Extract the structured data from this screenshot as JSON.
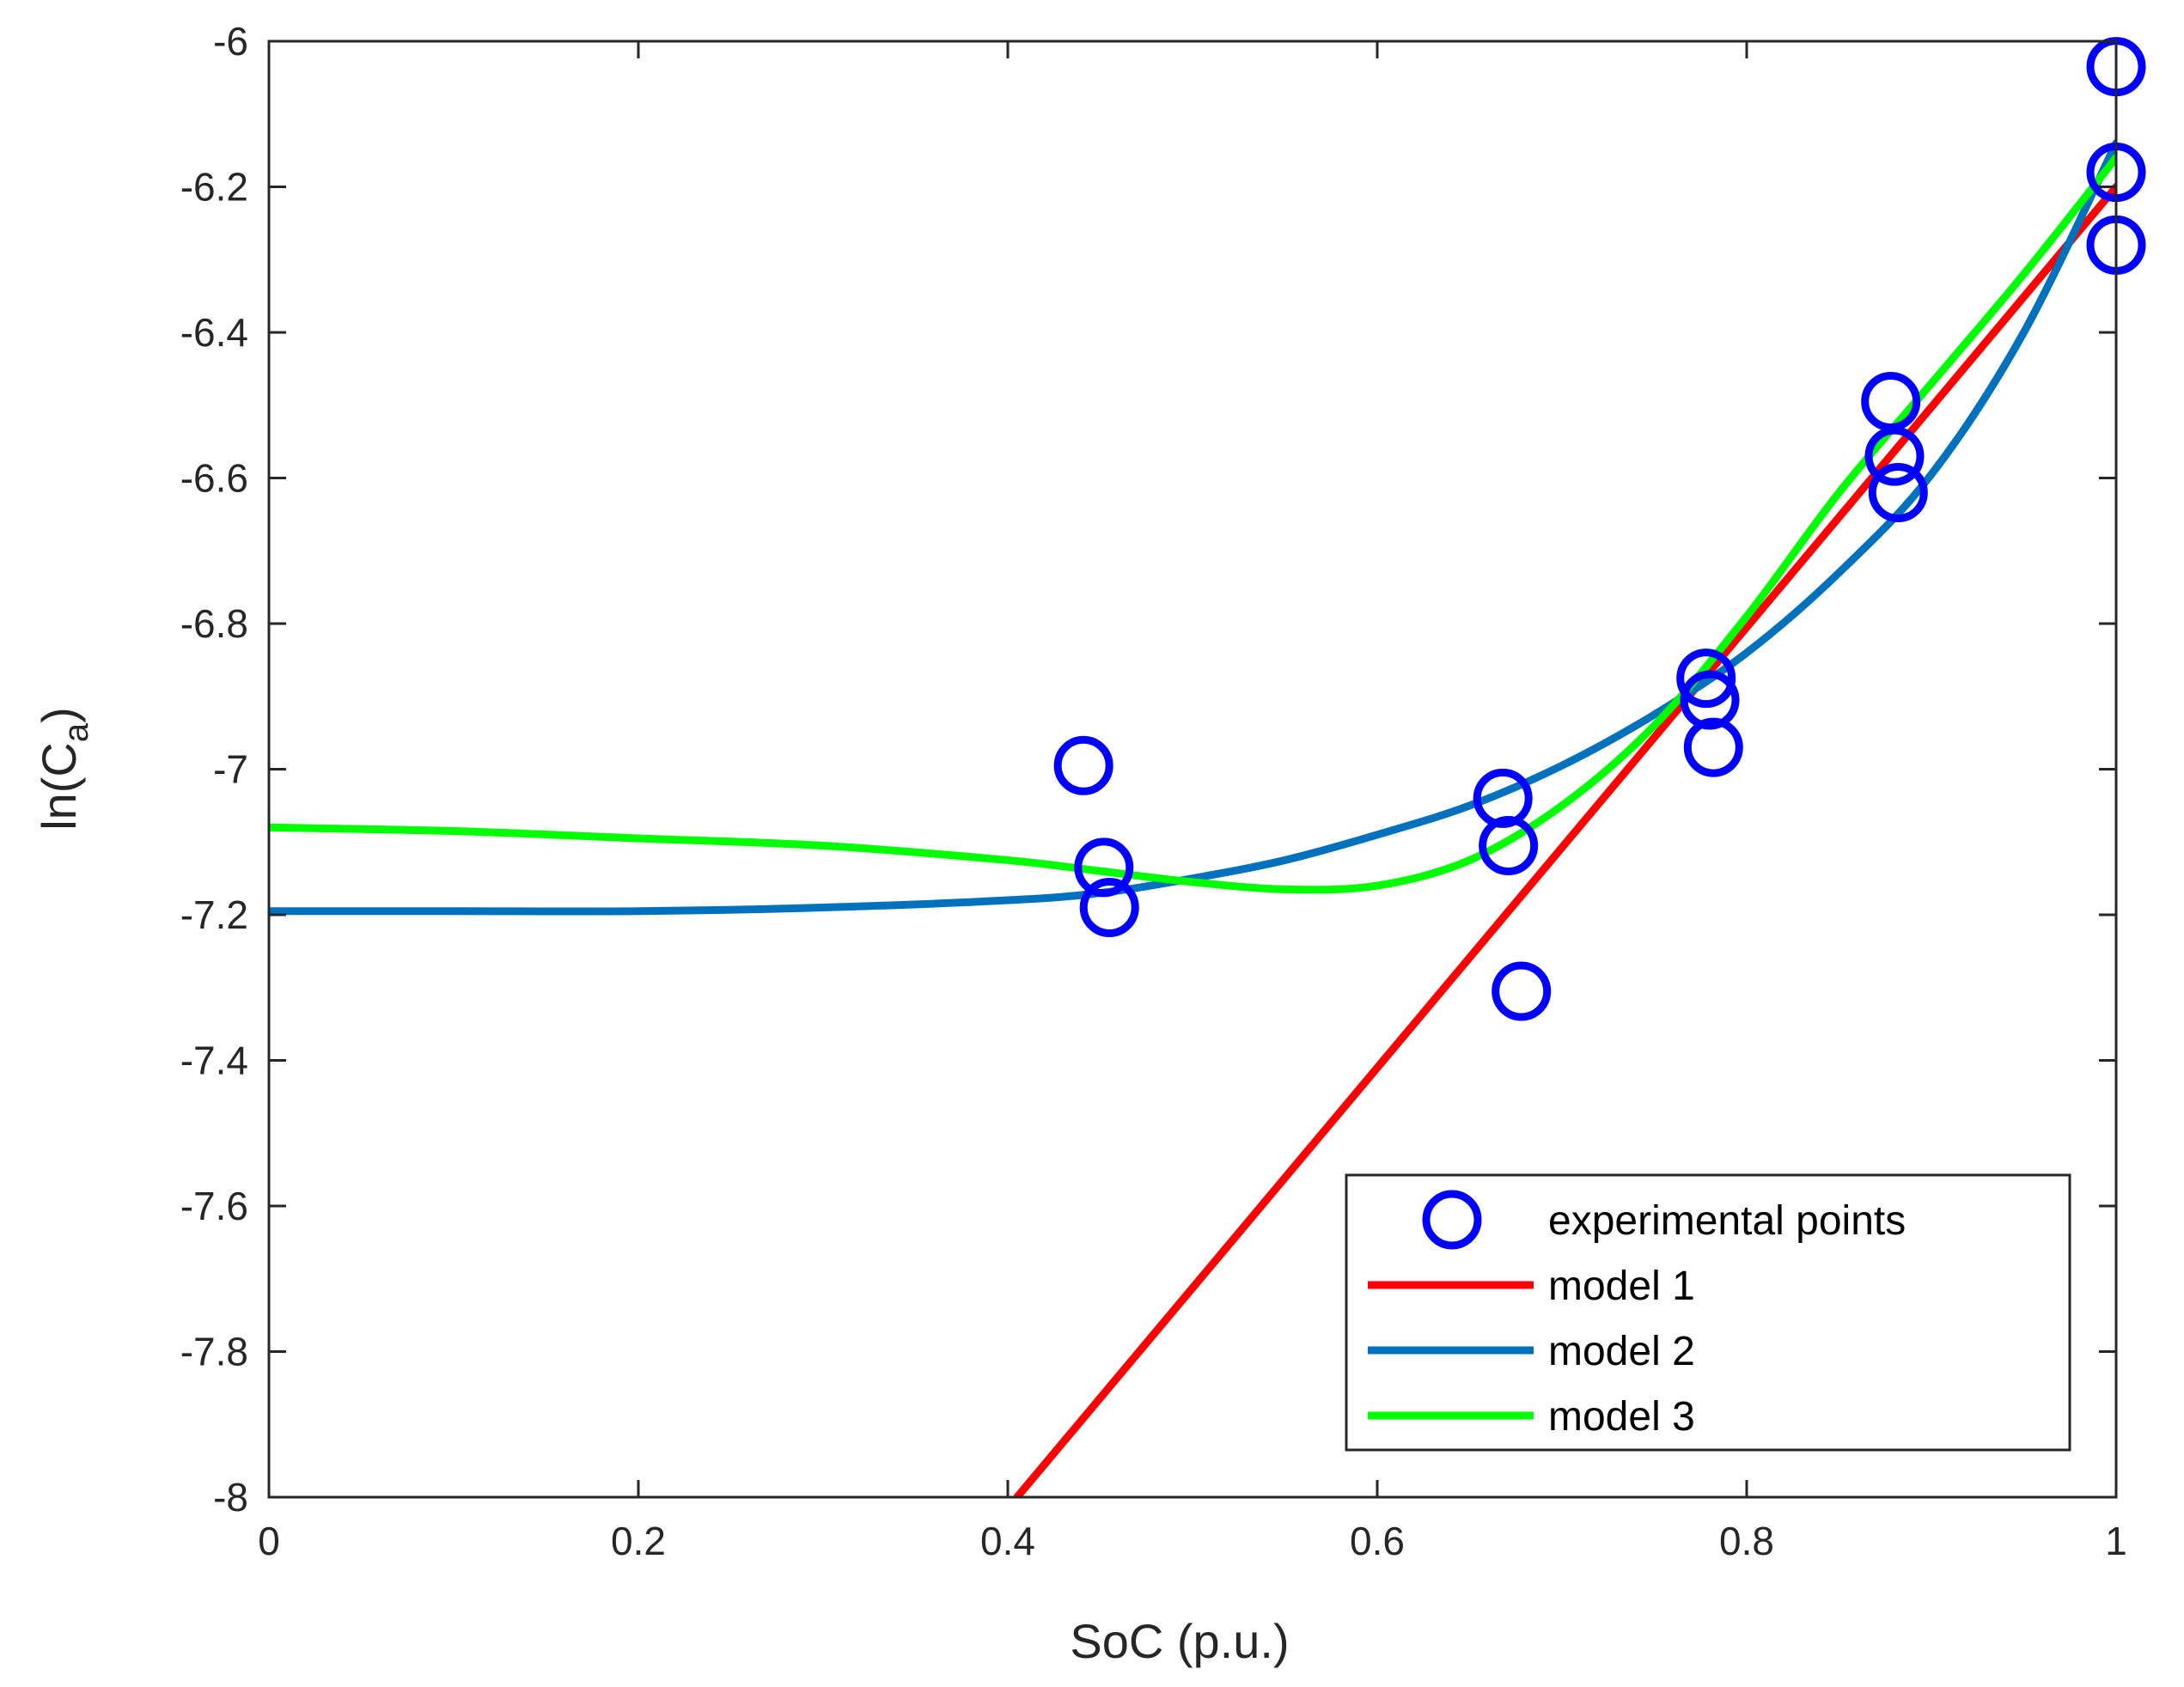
{
  "chart_data": {
    "type": "line",
    "title": "",
    "xlabel": "SoC (p.u.)",
    "ylabel": {
      "main": "ln(C",
      "subscript": "a",
      "close": ")"
    },
    "xlim": [
      0,
      1
    ],
    "ylim": [
      -8,
      -6
    ],
    "x_ticks": [
      0,
      0.2,
      0.4,
      0.6,
      0.8,
      1
    ],
    "x_tick_labels": [
      "0",
      "0.2",
      "0.4",
      "0.6",
      "0.8",
      "1"
    ],
    "y_ticks": [
      -8,
      -7.8,
      -7.6,
      -7.4,
      -7.2,
      -7,
      -6.8,
      -6.6,
      -6.4,
      -6.2,
      -6
    ],
    "y_tick_labels": [
      "-8",
      "-7.8",
      "-7.6",
      "-7.4",
      "-7.2",
      "-7",
      "-6.8",
      "-6.6",
      "-6.4",
      "-6.2",
      "-6"
    ],
    "grid": false,
    "legend_position": "bottom-right",
    "series": [
      {
        "name": "experimental points",
        "kind": "scatter",
        "marker": "circle",
        "color": "#0000ff",
        "points": [
          [
            0.441,
            -6.995
          ],
          [
            0.452,
            -7.135
          ],
          [
            0.455,
            -7.19
          ],
          [
            0.668,
            -7.04
          ],
          [
            0.671,
            -7.105
          ],
          [
            0.678,
            -7.305
          ],
          [
            0.778,
            -6.875
          ],
          [
            0.78,
            -6.905
          ],
          [
            0.782,
            -6.97
          ],
          [
            0.878,
            -6.495
          ],
          [
            0.88,
            -6.57
          ],
          [
            0.882,
            -6.62
          ],
          [
            1.0,
            -6.035
          ],
          [
            1.0,
            -6.18
          ],
          [
            1.0,
            -6.28
          ]
        ]
      },
      {
        "name": "model 1",
        "kind": "line",
        "color": "#ff0000",
        "x": [
          0.405,
          1.0
        ],
        "y": [
          -8.0,
          -6.2
        ]
      },
      {
        "name": "model 2",
        "kind": "line",
        "color": "#0072bd",
        "x": [
          0,
          0.1,
          0.2,
          0.3,
          0.4,
          0.45,
          0.5,
          0.55,
          0.6,
          0.65,
          0.7,
          0.75,
          0.8,
          0.85,
          0.9,
          0.95,
          1.0
        ],
        "y": [
          -7.195,
          -7.195,
          -7.195,
          -7.19,
          -7.18,
          -7.17,
          -7.15,
          -7.125,
          -7.09,
          -7.05,
          -6.995,
          -6.925,
          -6.84,
          -6.73,
          -6.595,
          -6.4,
          -6.14
        ]
      },
      {
        "name": "model 3",
        "kind": "line",
        "color": "#00ff00",
        "x": [
          0,
          0.1,
          0.2,
          0.3,
          0.4,
          0.45,
          0.5,
          0.55,
          0.6,
          0.65,
          0.7,
          0.75,
          0.8,
          0.85,
          0.9,
          0.95,
          1.0
        ],
        "y": [
          -7.08,
          -7.085,
          -7.095,
          -7.105,
          -7.125,
          -7.14,
          -7.155,
          -7.165,
          -7.16,
          -7.125,
          -7.05,
          -6.94,
          -6.79,
          -6.62,
          -6.47,
          -6.32,
          -6.16
        ]
      }
    ]
  }
}
